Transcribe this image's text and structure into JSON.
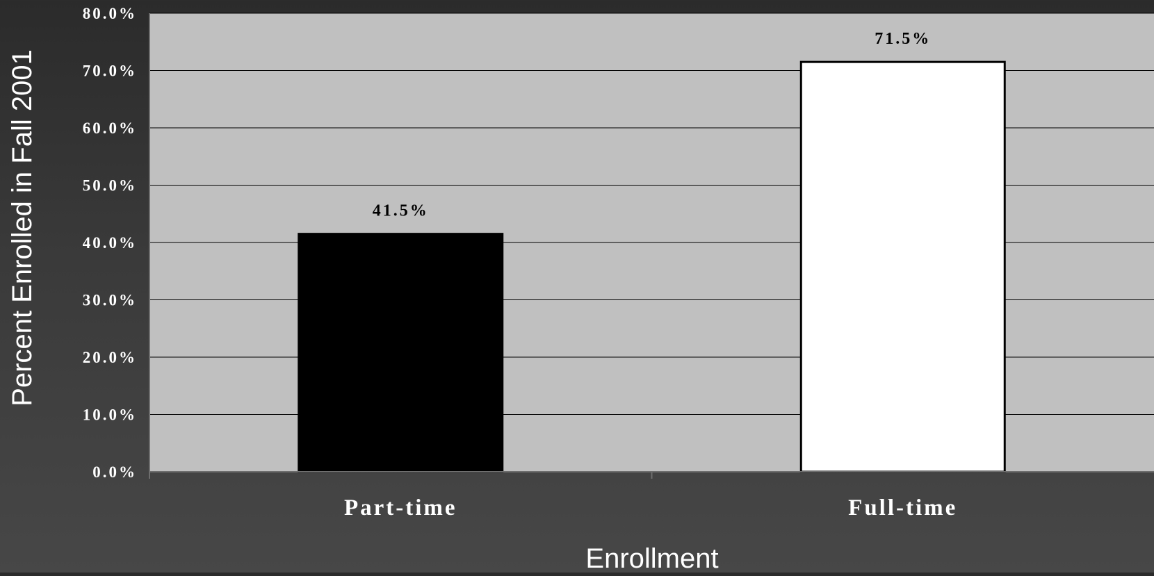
{
  "chart_data": {
    "type": "bar",
    "title": "",
    "xlabel": "Enrollment",
    "ylabel": "Percent Enrolled in Fall 2001",
    "categories": [
      "Part-time",
      "Full-time"
    ],
    "values": [
      41.5,
      71.5
    ],
    "data_labels": [
      "41.5%",
      "71.5%"
    ],
    "ylim": [
      0,
      80
    ],
    "yticks": [
      0,
      10,
      20,
      30,
      40,
      50,
      60,
      70,
      80
    ],
    "ytick_labels": [
      "0.0%",
      "10.0%",
      "20.0%",
      "30.0%",
      "40.0%",
      "50.0%",
      "60.0%",
      "70.0%",
      "80.0%"
    ],
    "grid": true,
    "legend": "none",
    "colors": {
      "plot_background": "#c0c0c0",
      "gridline": "#000000",
      "bar_fills": [
        "#000000",
        "#ffffff"
      ],
      "bar_stroke": "#000000",
      "text": "#ffffff",
      "data_label_text": "#000000"
    }
  }
}
